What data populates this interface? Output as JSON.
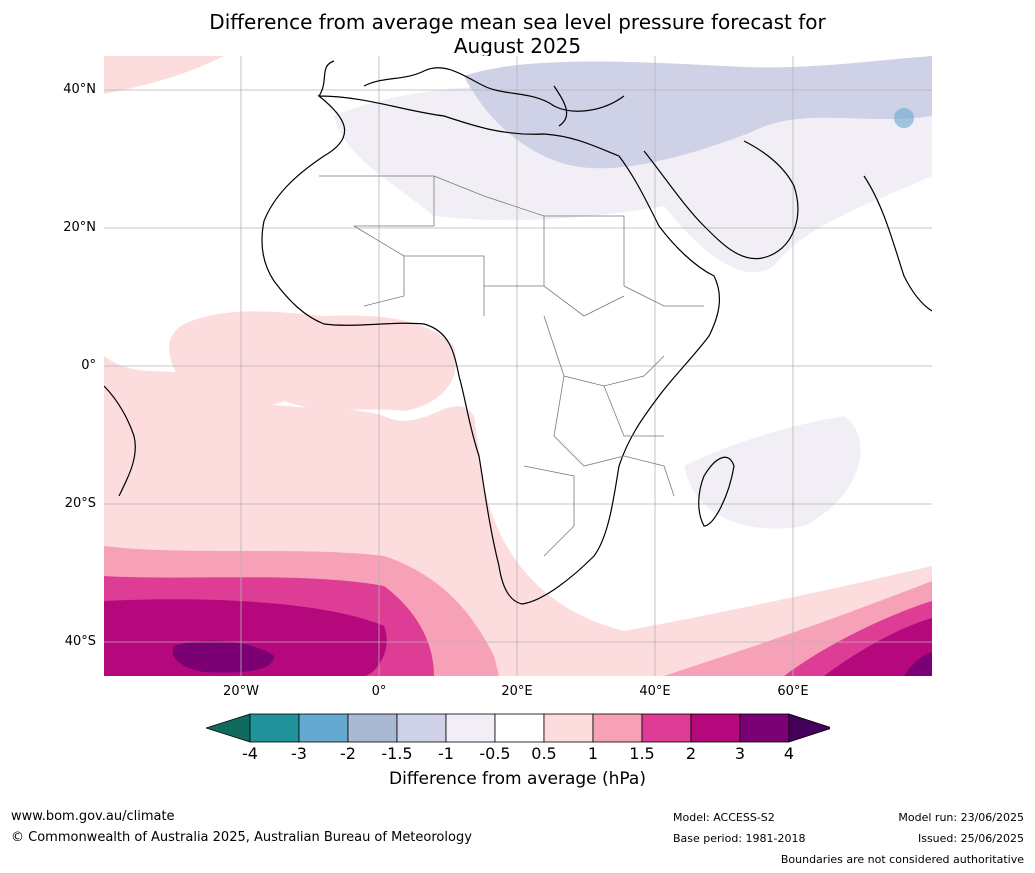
{
  "title_line1": "Difference from average mean sea level pressure forecast for",
  "title_line2": "August 2025",
  "lat_labels": [
    "40°N",
    "20°N",
    "0°",
    "20°S",
    "40°S"
  ],
  "lon_labels": [
    "20°W",
    "0°",
    "20°E",
    "40°E",
    "60°E"
  ],
  "colorbar": {
    "ticks": [
      "-4",
      "-3",
      "-2",
      "-1.5",
      "-1",
      "-0.5",
      "0.5",
      "1",
      "1.5",
      "2",
      "3",
      "4"
    ],
    "label": "Difference from average (hPa)",
    "colors": [
      "#0e6b5e",
      "#1f9399",
      "#66a9d0",
      "#a9b8d3",
      "#cfd1e6",
      "#f2eef6",
      "#ffffff",
      "#fcdcdc",
      "#f7a1b8",
      "#de3d95",
      "#b5087c",
      "#7a0074",
      "#45005c"
    ]
  },
  "footer": {
    "website": "www.bom.gov.au/climate",
    "copyright": "© Commonwealth of Australia 2025, Australian Bureau of Meteorology",
    "model": "Model: ACCESS-S2",
    "base_period": "Base period: 1981-2018",
    "model_run": "Model run: 23/06/2025",
    "issued": "Issued: 25/06/2025",
    "disclaimer": "Boundaries are not considered authoritative"
  }
}
